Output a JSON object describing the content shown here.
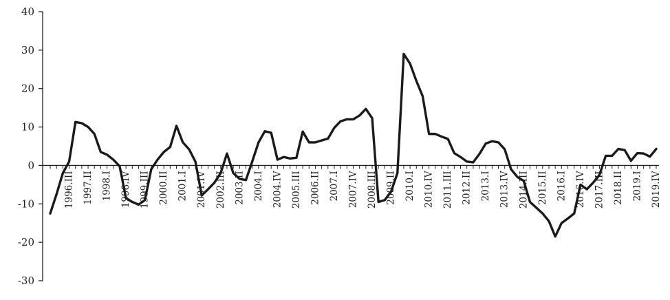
{
  "chart_data": {
    "type": "line",
    "title": "",
    "xlabel": "",
    "ylabel": "",
    "ylim": [
      -30,
      40
    ],
    "yticks": [
      -30,
      -20,
      -10,
      0,
      10,
      20,
      30,
      40
    ],
    "grid": false,
    "legend": "none",
    "line_color": "#1a1a1a",
    "x_tick_labels": [
      {
        "index": 3,
        "label": "1996.III"
      },
      {
        "index": 6,
        "label": "1997.II"
      },
      {
        "index": 9,
        "label": "1998.I"
      },
      {
        "index": 12,
        "label": "1998.IV"
      },
      {
        "index": 15,
        "label": "1999.III"
      },
      {
        "index": 18,
        "label": "2000.II"
      },
      {
        "index": 21,
        "label": "2001.I"
      },
      {
        "index": 24,
        "label": "2001.IV"
      },
      {
        "index": 27,
        "label": "2002.III"
      },
      {
        "index": 30,
        "label": "2003.II"
      },
      {
        "index": 33,
        "label": "2004.I"
      },
      {
        "index": 36,
        "label": "2004.IV"
      },
      {
        "index": 39,
        "label": "2005.III"
      },
      {
        "index": 42,
        "label": "2006.II"
      },
      {
        "index": 45,
        "label": "2007.I"
      },
      {
        "index": 48,
        "label": "2007.IV"
      },
      {
        "index": 51,
        "label": "2008.III"
      },
      {
        "index": 54,
        "label": "2009.II"
      },
      {
        "index": 57,
        "label": "2010.I"
      },
      {
        "index": 60,
        "label": "2010.IV"
      },
      {
        "index": 63,
        "label": "2011.III"
      },
      {
        "index": 66,
        "label": "2012.II"
      },
      {
        "index": 69,
        "label": "2013.I"
      },
      {
        "index": 72,
        "label": "2013.IV"
      },
      {
        "index": 75,
        "label": "2014.III"
      },
      {
        "index": 78,
        "label": "2015.II"
      },
      {
        "index": 81,
        "label": "2016.I"
      },
      {
        "index": 84,
        "label": "2016.IV"
      },
      {
        "index": 87,
        "label": "2017.III"
      },
      {
        "index": 90,
        "label": "2018.II"
      },
      {
        "index": 93,
        "label": "2019.I"
      },
      {
        "index": 96,
        "label": "2019.IV"
      }
    ],
    "series": [
      {
        "values": [
          -12.5,
          -7.5,
          -2,
          1,
          11.3,
          11,
          10,
          8.2,
          3.5,
          2.8,
          1.5,
          -0.2,
          -8.5,
          -9.5,
          -10.2,
          -9,
          -1,
          1.5,
          3.5,
          4.8,
          10.3,
          6,
          4.2,
          1,
          -7.8,
          -6.2,
          -4.5,
          -2,
          3.1,
          -2,
          -3.5,
          -3.8,
          1,
          6,
          8.9,
          8.5,
          1.5,
          2.2,
          1.8,
          2,
          8.8,
          6,
          6,
          6.5,
          7,
          9.8,
          11.5,
          12,
          12,
          13,
          14.7,
          12.3,
          -9.5,
          -9,
          -6.8,
          -2,
          29,
          26.5,
          22,
          18,
          8.2,
          8.2,
          7.5,
          6.9,
          3.2,
          2.2,
          1,
          0.8,
          3,
          5.7,
          6.3,
          6,
          4.2,
          -1,
          -3,
          -4,
          -9.5,
          -11,
          -12.5,
          -14.5,
          -18.5,
          -15,
          -13.8,
          -12.5,
          -5,
          -6.2,
          -4.5,
          -2.5,
          2.5,
          2.5,
          4.3,
          4,
          1.2,
          3.2,
          3.1,
          2.3,
          4.3
        ]
      }
    ]
  }
}
